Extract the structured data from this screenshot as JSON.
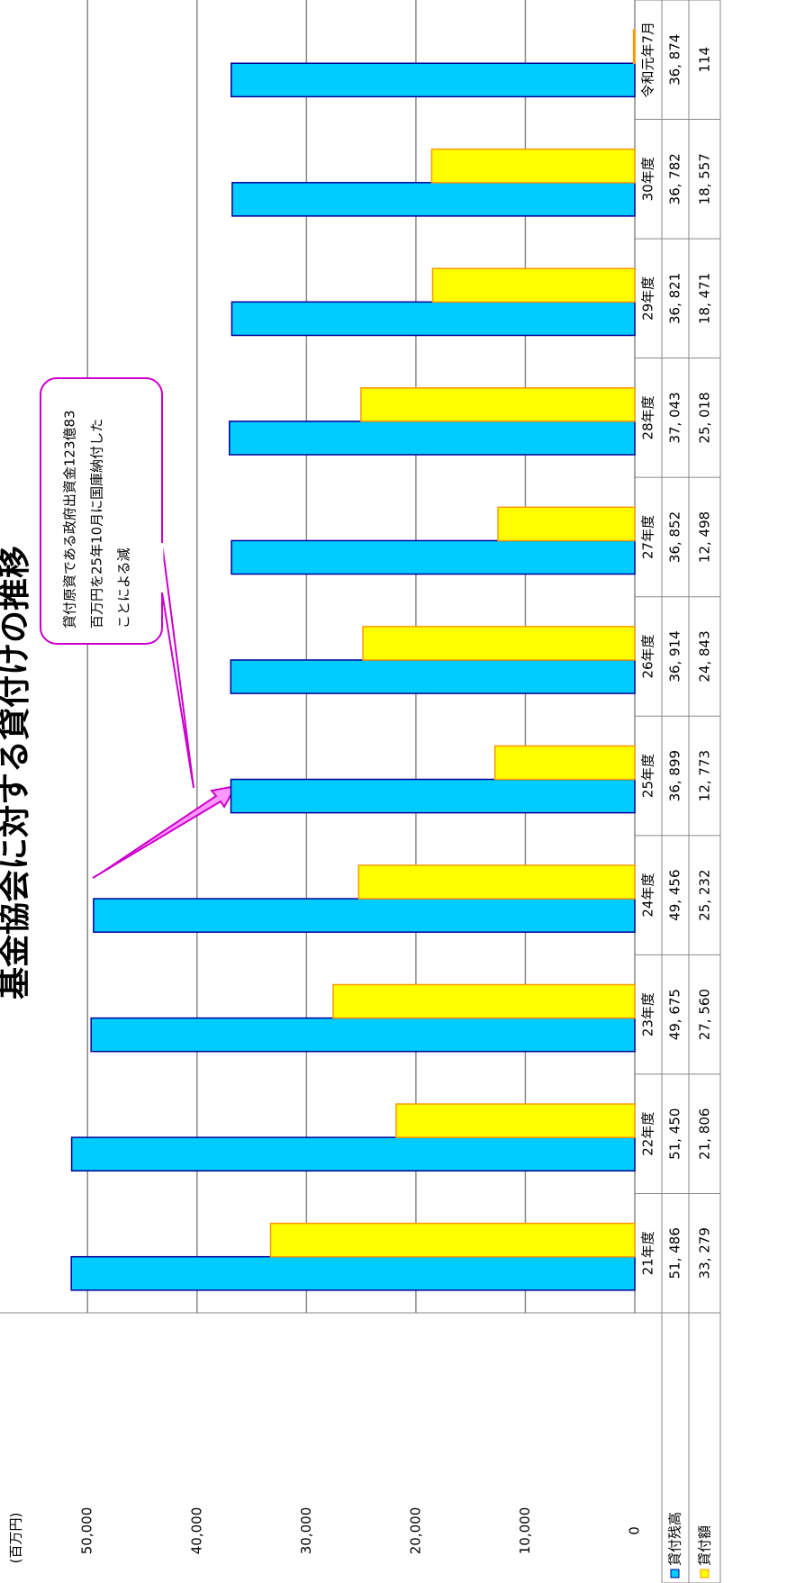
{
  "chart_data": {
    "type": "bar",
    "title": "基金協会に対する貸付けの推移",
    "unit_label": "(百万円)",
    "categories": [
      "21年度",
      "22年度",
      "23年度",
      "24年度",
      "25年度",
      "26年度",
      "27年度",
      "28年度",
      "29年度",
      "30年度",
      "令和元年7月"
    ],
    "series": [
      {
        "name": "貸付残高",
        "color": "#00ccff",
        "stroke": "#000099",
        "values": [
          51486,
          51450,
          49675,
          49456,
          36899,
          36914,
          36852,
          37043,
          36821,
          36782,
          36874
        ],
        "value_labels": [
          "51, 486",
          "51, 450",
          "49, 675",
          "49, 456",
          "36, 899",
          "36, 914",
          "36, 852",
          "37, 043",
          "36, 821",
          "36, 782",
          "36, 874"
        ]
      },
      {
        "name": "貸付額",
        "color": "#ffff00",
        "stroke": "#ff9900",
        "values": [
          33279,
          21806,
          27560,
          25232,
          12773,
          24843,
          12498,
          25018,
          18471,
          18557,
          114
        ],
        "value_labels": [
          "33, 279",
          "21, 806",
          "27, 560",
          "25, 232",
          "12, 773",
          "24, 843",
          "12, 498",
          "25, 018",
          "18, 471",
          "18, 557",
          "114"
        ]
      }
    ],
    "ylim": [
      0,
      58000
    ],
    "yticks": [
      0,
      {
        "value": 10000,
        "label": "10,000"
      },
      {
        "value": 20000,
        "label": "20,000"
      },
      {
        "value": 30000,
        "label": "30,000"
      },
      {
        "value": 40000,
        "label": "40,000"
      },
      {
        "value": 50000,
        "label": "50,000"
      }
    ],
    "grid": true,
    "annotation": [
      "貸付原資である政府出資金123億83",
      "百万円を25年10月に国庫納付した",
      "ことによる減"
    ]
  }
}
